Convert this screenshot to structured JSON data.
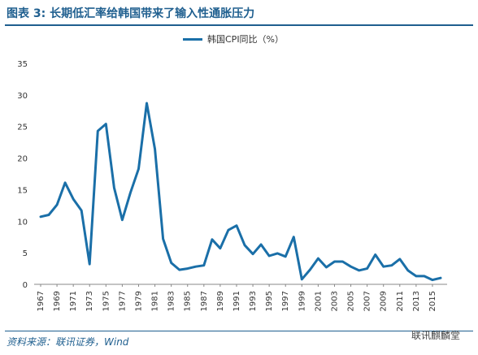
{
  "title": "图表 3: 长期低汇率给韩国带来了输入性通胀压力",
  "source": "资料来源：联讯证券，Wind",
  "watermark": "联讯麒麟堂",
  "legend": "韩国CPI同比（%）",
  "chart_data": {
    "type": "line",
    "title": "图表 3: 长期低汇率给韩国带来了输入性通胀压力",
    "xlabel": "",
    "ylabel": "",
    "ylim": [
      0,
      35
    ],
    "yticks": [
      0,
      5,
      10,
      15,
      20,
      25,
      30,
      35
    ],
    "xtick_labels": [
      "1967",
      "1969",
      "1971",
      "1973",
      "1975",
      "1977",
      "1979",
      "1981",
      "1983",
      "1985",
      "1987",
      "1989",
      "1991",
      "1993",
      "1995",
      "1997",
      "1999",
      "2001",
      "2003",
      "2005",
      "2007",
      "2009",
      "2011",
      "2013",
      "2015"
    ],
    "legend_position": "top",
    "grid": false,
    "color": "#1a6fa8",
    "series": [
      {
        "name": "韩国CPI同比（%）",
        "x": [
          1967,
          1968,
          1969,
          1970,
          1971,
          1972,
          1973,
          1974,
          1975,
          1976,
          1977,
          1978,
          1979,
          1980,
          1981,
          1982,
          1983,
          1984,
          1985,
          1986,
          1987,
          1988,
          1989,
          1990,
          1991,
          1992,
          1993,
          1994,
          1995,
          1996,
          1997,
          1998,
          1999,
          2000,
          2001,
          2002,
          2003,
          2004,
          2005,
          2006,
          2007,
          2008,
          2009,
          2010,
          2011,
          2012,
          2013,
          2014,
          2015,
          2016
        ],
        "values": [
          10.7,
          11.0,
          12.6,
          16.1,
          13.5,
          11.7,
          3.2,
          24.3,
          25.4,
          15.3,
          10.2,
          14.5,
          18.3,
          28.7,
          21.4,
          7.2,
          3.4,
          2.3,
          2.5,
          2.8,
          3.0,
          7.1,
          5.7,
          8.6,
          9.3,
          6.2,
          4.8,
          6.3,
          4.5,
          4.9,
          4.4,
          7.5,
          0.8,
          2.3,
          4.1,
          2.7,
          3.6,
          3.6,
          2.8,
          2.2,
          2.5,
          4.7,
          2.8,
          3.0,
          4.0,
          2.2,
          1.3,
          1.3,
          0.7,
          1.0
        ]
      }
    ]
  }
}
